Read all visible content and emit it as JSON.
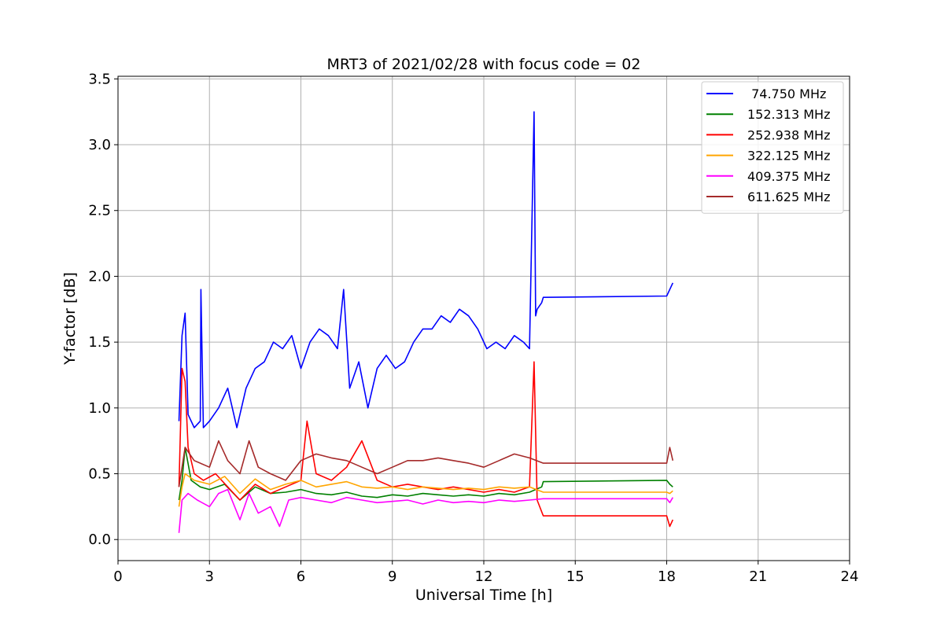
{
  "chart_data": {
    "type": "line",
    "title": "MRT3 of 2021/02/28 with focus code = 02",
    "xlabel": "Universal Time [h]",
    "ylabel": "Y-factor [dB]",
    "xlim": [
      0,
      24
    ],
    "ylim": [
      -0.16,
      3.52
    ],
    "xticks": [
      0,
      3,
      6,
      9,
      12,
      15,
      18,
      21,
      24
    ],
    "yticks": [
      0.0,
      0.5,
      1.0,
      1.5,
      2.0,
      2.5,
      3.0,
      3.5
    ],
    "xtick_labels": [
      "0",
      "3",
      "6",
      "9",
      "12",
      "15",
      "18",
      "21",
      "24"
    ],
    "ytick_labels": [
      "0.0",
      "0.5",
      "1.0",
      "1.5",
      "2.0",
      "2.5",
      "3.0",
      "3.5"
    ],
    "grid": true,
    "legend_position": "top-right",
    "series": [
      {
        "name": " 74.750 MHz",
        "color": "#0000ff",
        "x": [
          2.0,
          2.1,
          2.2,
          2.3,
          2.5,
          2.7,
          2.72,
          2.8,
          3.0,
          3.3,
          3.6,
          3.9,
          4.2,
          4.5,
          4.8,
          5.1,
          5.4,
          5.7,
          6.0,
          6.3,
          6.6,
          6.9,
          7.2,
          7.4,
          7.6,
          7.9,
          8.2,
          8.5,
          8.8,
          9.1,
          9.4,
          9.7,
          10.0,
          10.3,
          10.6,
          10.9,
          11.2,
          11.5,
          11.8,
          12.1,
          12.4,
          12.7,
          13.0,
          13.3,
          13.5,
          13.65,
          13.7,
          13.75,
          13.9,
          13.95,
          18.0,
          18.1,
          18.2
        ],
        "y": [
          0.9,
          1.55,
          1.72,
          0.95,
          0.85,
          0.9,
          1.9,
          0.85,
          0.9,
          1.0,
          1.15,
          0.85,
          1.15,
          1.3,
          1.35,
          1.5,
          1.45,
          1.55,
          1.3,
          1.5,
          1.6,
          1.55,
          1.45,
          1.9,
          1.15,
          1.35,
          1.0,
          1.3,
          1.4,
          1.3,
          1.35,
          1.5,
          1.6,
          1.6,
          1.7,
          1.65,
          1.75,
          1.7,
          1.6,
          1.45,
          1.5,
          1.45,
          1.55,
          1.5,
          1.45,
          3.25,
          1.7,
          1.75,
          1.8,
          1.84,
          1.85,
          1.9,
          1.95
        ]
      },
      {
        "name": "152.313 MHz",
        "color": "#008000",
        "x": [
          2.0,
          2.1,
          2.2,
          2.4,
          2.7,
          3.0,
          3.5,
          4.0,
          4.5,
          5.0,
          5.5,
          6.0,
          6.5,
          7.0,
          7.5,
          8.0,
          8.5,
          9.0,
          9.5,
          10.0,
          10.5,
          11.0,
          11.5,
          12.0,
          12.5,
          13.0,
          13.5,
          13.9,
          13.95,
          18.0,
          18.1,
          18.2
        ],
        "y": [
          0.3,
          0.45,
          0.7,
          0.45,
          0.4,
          0.38,
          0.42,
          0.3,
          0.4,
          0.35,
          0.36,
          0.38,
          0.35,
          0.34,
          0.36,
          0.33,
          0.32,
          0.34,
          0.33,
          0.35,
          0.34,
          0.33,
          0.34,
          0.33,
          0.35,
          0.34,
          0.36,
          0.4,
          0.44,
          0.45,
          0.42,
          0.4
        ]
      },
      {
        "name": "252.938 MHz",
        "color": "#ff0000",
        "x": [
          2.0,
          2.1,
          2.2,
          2.3,
          2.5,
          2.8,
          3.2,
          3.6,
          4.0,
          4.5,
          5.0,
          5.5,
          6.0,
          6.2,
          6.5,
          7.0,
          7.5,
          8.0,
          8.5,
          9.0,
          9.5,
          10.0,
          10.5,
          11.0,
          11.5,
          12.0,
          12.5,
          13.0,
          13.5,
          13.65,
          13.75,
          13.95,
          18.0,
          18.1,
          18.2
        ],
        "y": [
          0.4,
          1.3,
          1.2,
          0.7,
          0.5,
          0.45,
          0.5,
          0.4,
          0.3,
          0.42,
          0.35,
          0.4,
          0.45,
          0.9,
          0.5,
          0.45,
          0.55,
          0.75,
          0.45,
          0.4,
          0.42,
          0.4,
          0.38,
          0.4,
          0.38,
          0.36,
          0.38,
          0.36,
          0.4,
          1.35,
          0.3,
          0.18,
          0.18,
          0.1,
          0.15
        ]
      },
      {
        "name": "322.125 MHz",
        "color": "#ffa500",
        "x": [
          2.0,
          2.1,
          2.2,
          2.5,
          3.0,
          3.5,
          4.0,
          4.5,
          5.0,
          5.5,
          6.0,
          6.5,
          7.0,
          7.5,
          8.0,
          8.5,
          9.0,
          9.5,
          10.0,
          10.5,
          11.0,
          11.5,
          12.0,
          12.5,
          13.0,
          13.5,
          13.95,
          18.0,
          18.1,
          18.2
        ],
        "y": [
          0.25,
          0.4,
          0.5,
          0.45,
          0.42,
          0.48,
          0.35,
          0.46,
          0.38,
          0.42,
          0.45,
          0.4,
          0.42,
          0.44,
          0.4,
          0.39,
          0.4,
          0.38,
          0.4,
          0.39,
          0.38,
          0.39,
          0.38,
          0.4,
          0.39,
          0.4,
          0.36,
          0.36,
          0.35,
          0.37
        ]
      },
      {
        "name": "409.375 MHz",
        "color": "#ff00ff",
        "x": [
          2.0,
          2.1,
          2.3,
          2.6,
          3.0,
          3.3,
          3.6,
          4.0,
          4.3,
          4.6,
          5.0,
          5.3,
          5.6,
          6.0,
          6.5,
          7.0,
          7.5,
          8.0,
          8.5,
          9.0,
          9.5,
          10.0,
          10.5,
          11.0,
          11.5,
          12.0,
          12.5,
          13.0,
          13.5,
          13.95,
          18.0,
          18.1,
          18.2
        ],
        "y": [
          0.05,
          0.3,
          0.35,
          0.3,
          0.25,
          0.35,
          0.38,
          0.15,
          0.35,
          0.2,
          0.25,
          0.1,
          0.3,
          0.32,
          0.3,
          0.28,
          0.32,
          0.3,
          0.28,
          0.29,
          0.3,
          0.27,
          0.3,
          0.28,
          0.29,
          0.28,
          0.3,
          0.29,
          0.3,
          0.31,
          0.31,
          0.28,
          0.32
        ]
      },
      {
        "name": "611.625 MHz",
        "color": "#a52a2a",
        "x": [
          2.0,
          2.1,
          2.2,
          2.5,
          3.0,
          3.3,
          3.6,
          4.0,
          4.3,
          4.6,
          5.0,
          5.5,
          6.0,
          6.5,
          7.0,
          7.5,
          8.0,
          8.5,
          9.0,
          9.5,
          10.0,
          10.5,
          11.0,
          11.5,
          12.0,
          12.5,
          13.0,
          13.5,
          13.95,
          18.0,
          18.1,
          18.2
        ],
        "y": [
          0.4,
          0.55,
          0.7,
          0.6,
          0.55,
          0.75,
          0.6,
          0.5,
          0.75,
          0.55,
          0.5,
          0.45,
          0.6,
          0.65,
          0.62,
          0.6,
          0.55,
          0.5,
          0.55,
          0.6,
          0.6,
          0.62,
          0.6,
          0.58,
          0.55,
          0.6,
          0.65,
          0.62,
          0.58,
          0.58,
          0.7,
          0.6
        ]
      }
    ]
  }
}
